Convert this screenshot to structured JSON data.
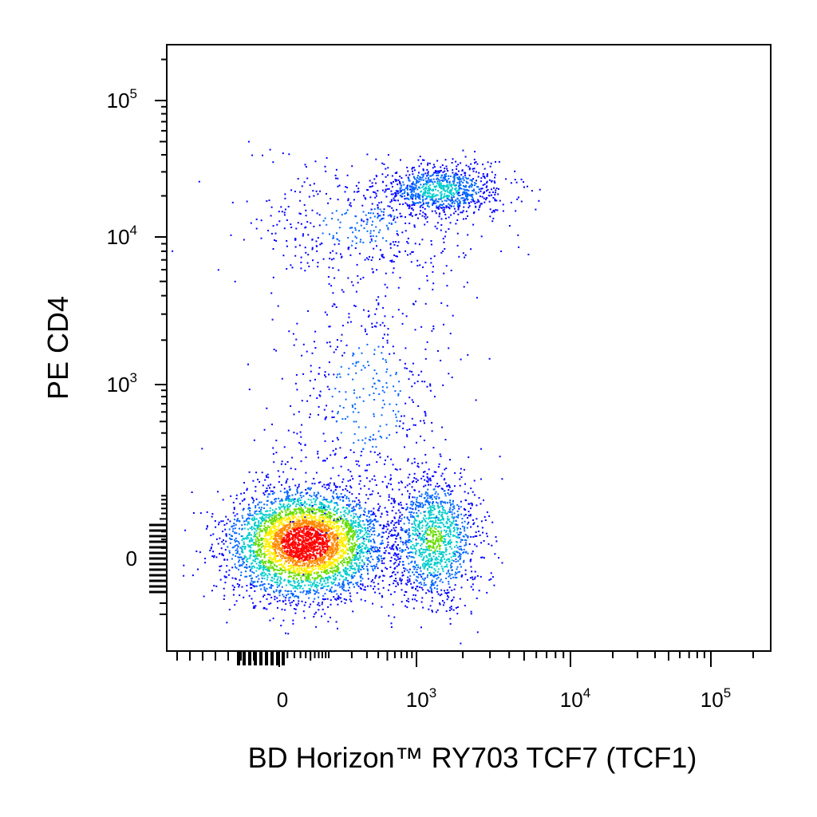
{
  "chart_data": {
    "type": "scatter",
    "title": "",
    "xlabel": "BD Horizon™ RY703 TCF7 (TCF1)",
    "ylabel": "PE CD4",
    "x_scale": "biexponential",
    "y_scale": "biexponential",
    "xlim": [
      -400,
      200000
    ],
    "ylim": [
      -250,
      250000
    ],
    "x_ticks": [
      {
        "value": 0,
        "base": "0",
        "exp": ""
      },
      {
        "value": 1000,
        "base": "10",
        "exp": "3"
      },
      {
        "value": 10000,
        "base": "10",
        "exp": "4"
      },
      {
        "value": 100000,
        "base": "10",
        "exp": "5"
      }
    ],
    "y_ticks": [
      {
        "value": 0,
        "base": "0",
        "exp": ""
      },
      {
        "value": 1000,
        "base": "10",
        "exp": "3"
      },
      {
        "value": 10000,
        "base": "10",
        "exp": "4"
      },
      {
        "value": 100000,
        "base": "10",
        "exp": "5"
      }
    ],
    "grid": false,
    "legend": "none",
    "color_map": "density (blue → cyan → green → yellow → red)",
    "populations": [
      {
        "x_center": 40,
        "y_center": 15,
        "count": 4200
      },
      {
        "x_center": 1300,
        "y_center": 20,
        "count": 1300
      },
      {
        "x_center": 1400,
        "y_center": 22000,
        "count": 900
      },
      {
        "x_center": 250,
        "y_center": 12000,
        "count": 450
      },
      {
        "x_center": 300,
        "y_center": 800,
        "count": 500
      }
    ]
  }
}
